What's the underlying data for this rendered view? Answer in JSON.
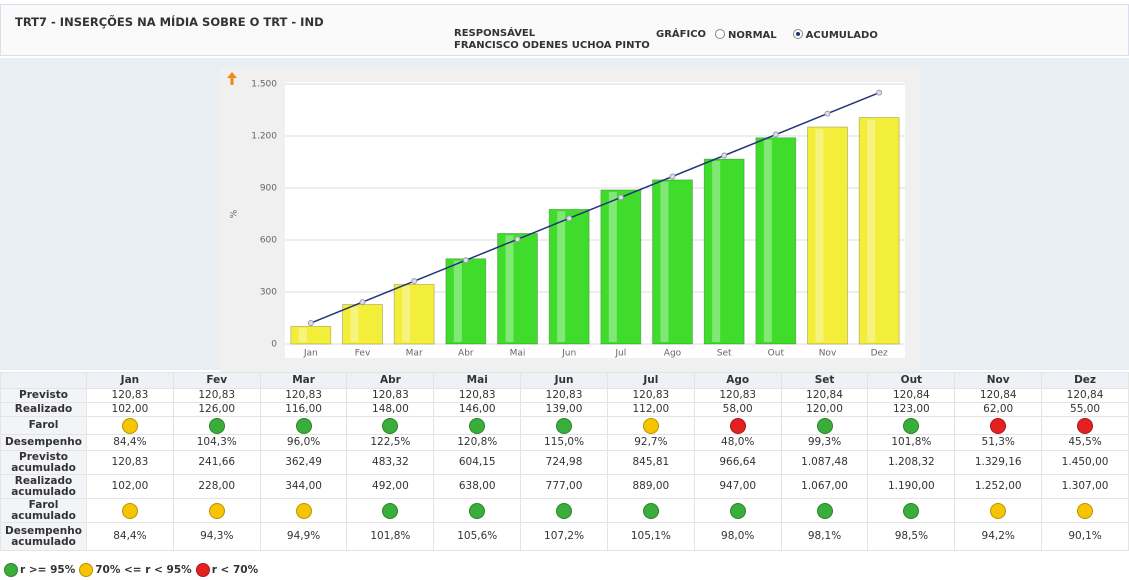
{
  "header": {
    "title": "TRT7 - INSERÇÕES NA MÍDIA SOBRE O TRT - IND",
    "responsible_label": "RESPONSÁVEL",
    "responsible_name": "FRANCISCO ODENES UCHOA PINTO",
    "chart_mode_label": "GRÁFICO",
    "chart_modes": [
      "NORMAL",
      "ACUMULADO"
    ],
    "selected_mode": 1
  },
  "chart_data": {
    "type": "bar",
    "ylabel": "%",
    "categories": [
      "Jan",
      "Fev",
      "Mar",
      "Abr",
      "Mai",
      "Jun",
      "Jul",
      "Ago",
      "Set",
      "Out",
      "Nov",
      "Dez"
    ],
    "series": [
      {
        "type": "bar",
        "colors": [
          "#f2ee3a",
          "#f2ee3a",
          "#f2ee3a",
          "#3fdc2c",
          "#3fdc2c",
          "#3fdc2c",
          "#3fdc2c",
          "#3fdc2c",
          "#3fdc2c",
          "#3fdc2c",
          "#f2ee3a",
          "#f2ee3a"
        ],
        "values": [
          102,
          228,
          344,
          492,
          638,
          777,
          889,
          947,
          1067,
          1190,
          1252,
          1307
        ]
      },
      {
        "type": "line",
        "color": "#23357a",
        "values": [
          120.83,
          241.66,
          362.49,
          483.32,
          604.15,
          724.98,
          845.81,
          966.64,
          1087.48,
          1208.32,
          1329.16,
          1450
        ]
      }
    ],
    "ylim": [
      0,
      1500
    ],
    "yticks": [
      0,
      300,
      600,
      900,
      {
        "value": 1200,
        "label": "1.200"
      },
      {
        "value": 1500,
        "label": "1.500"
      }
    ],
    "grid": true
  },
  "table": {
    "rows": [
      {
        "label": "Previsto",
        "cells": [
          "120,83",
          "120,83",
          "120,83",
          "120,83",
          "120,83",
          "120,83",
          "120,83",
          "120,83",
          "120,84",
          "120,84",
          "120,84",
          "120,84"
        ]
      },
      {
        "label": "Realizado",
        "cells": [
          "102,00",
          "126,00",
          "116,00",
          "148,00",
          "146,00",
          "139,00",
          "112,00",
          "58,00",
          "120,00",
          "123,00",
          "62,00",
          "55,00"
        ]
      },
      {
        "label": "Farol",
        "lights": [
          "#f7c400",
          "#3aae3a",
          "#3aae3a",
          "#3aae3a",
          "#3aae3a",
          "#3aae3a",
          "#f7c400",
          "#e52020",
          "#3aae3a",
          "#3aae3a",
          "#e52020",
          "#e52020"
        ]
      },
      {
        "label": "Desempenho",
        "cells": [
          "84,4%",
          "104,3%",
          "96,0%",
          "122,5%",
          "120,8%",
          "115,0%",
          "92,7%",
          "48,0%",
          "99,3%",
          "101,8%",
          "51,3%",
          "45,5%"
        ]
      },
      {
        "label": "Previsto acumulado",
        "cells": [
          "120,83",
          "241,66",
          "362,49",
          "483,32",
          "604,15",
          "724,98",
          "845,81",
          "966,64",
          "1.087,48",
          "1.208,32",
          "1.329,16",
          "1.450,00"
        ]
      },
      {
        "label": "Realizado acumulado",
        "cells": [
          "102,00",
          "228,00",
          "344,00",
          "492,00",
          "638,00",
          "777,00",
          "889,00",
          "947,00",
          "1.067,00",
          "1.190,00",
          "1.252,00",
          "1.307,00"
        ]
      },
      {
        "label": "Farol acumulado",
        "lights": [
          "#f7c400",
          "#f7c400",
          "#f7c400",
          "#3aae3a",
          "#3aae3a",
          "#3aae3a",
          "#3aae3a",
          "#3aae3a",
          "#3aae3a",
          "#3aae3a",
          "#f7c400",
          "#f7c400"
        ]
      },
      {
        "label": "Desempenho acumulado",
        "cells": [
          "84,4%",
          "94,3%",
          "94,9%",
          "101,8%",
          "105,6%",
          "107,2%",
          "105,1%",
          "98,0%",
          "98,1%",
          "98,5%",
          "94,2%",
          "90,1%"
        ]
      }
    ]
  },
  "legend": [
    {
      "color": "#3aae3a",
      "label": "r >= 95%"
    },
    {
      "color": "#f7c400",
      "label": "70% <= r < 95%"
    },
    {
      "color": "#e52020",
      "label": "r < 70%"
    }
  ]
}
